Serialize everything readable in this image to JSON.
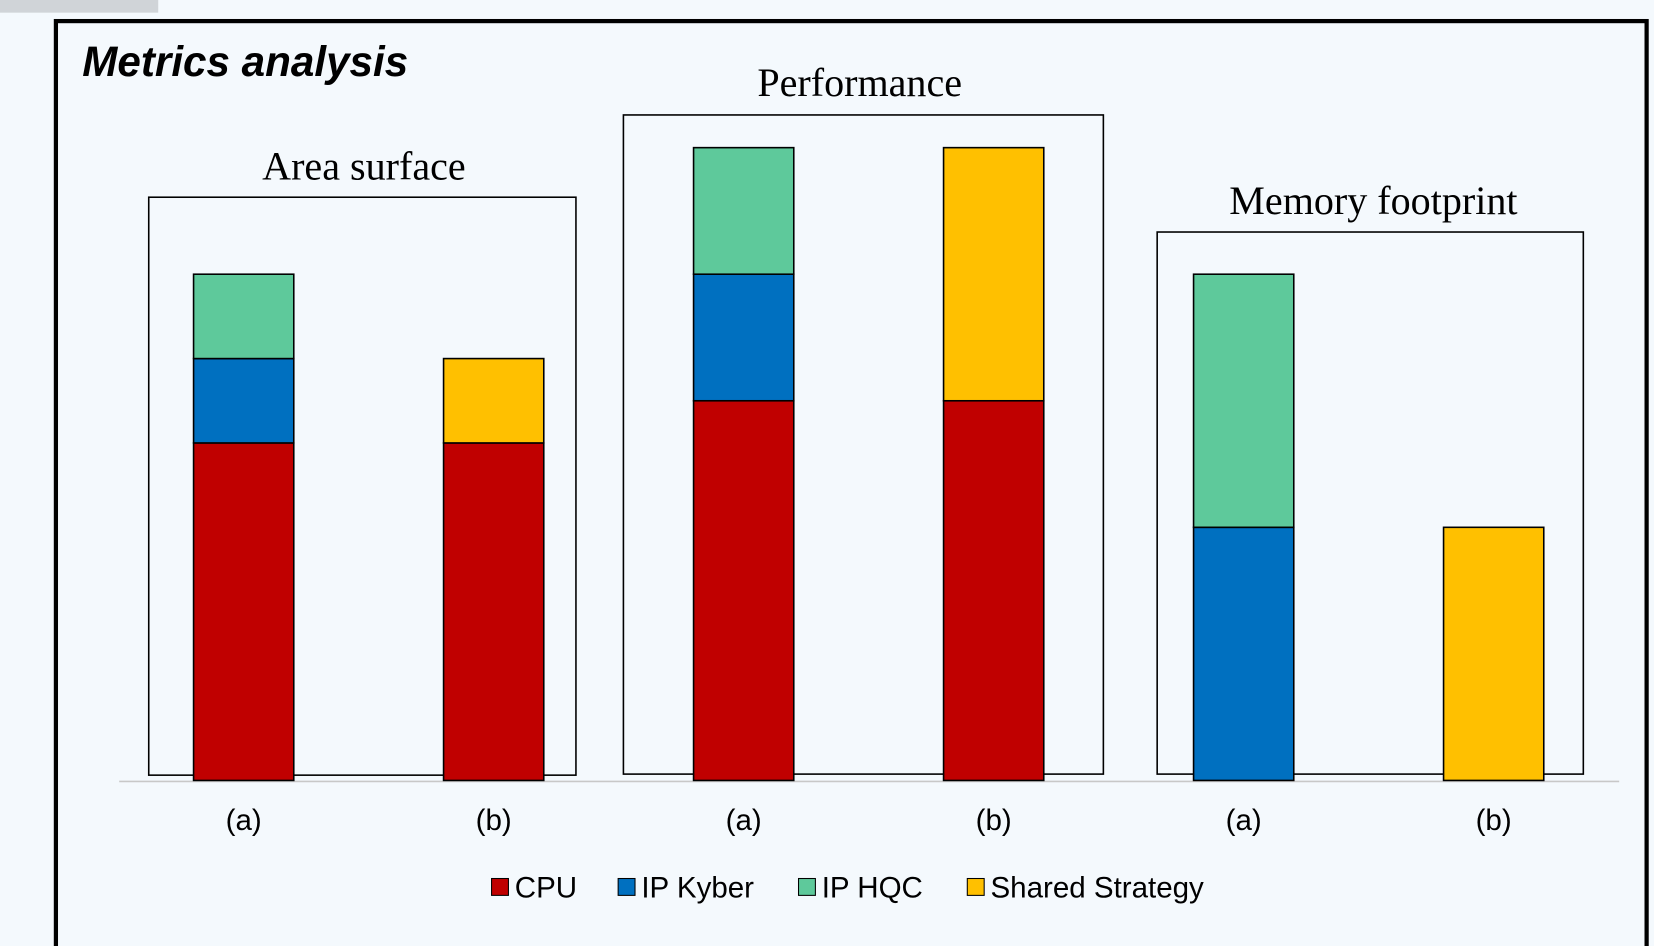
{
  "chart_data": {
    "type": "stacked_bar",
    "title": "Metrics analysis",
    "groups": [
      "Area surface",
      "Performance",
      "Memory footprint"
    ],
    "categories": [
      "(a)",
      "(b)",
      "(a)",
      "(b)",
      "(a)",
      "(b)"
    ],
    "series": [
      {
        "name": "CPU",
        "color": "#c00000",
        "values": [
          8,
          8,
          9,
          9,
          null,
          null
        ]
      },
      {
        "name": "IP Kyber",
        "color": "#0070c0",
        "values": [
          2,
          null,
          3,
          null,
          6,
          null
        ]
      },
      {
        "name": "IP HQC",
        "color": "#5ec99b",
        "values": [
          2,
          null,
          3,
          null,
          6,
          null
        ]
      },
      {
        "name": "Shared Strategy",
        "color": "#ffc000",
        "values": [
          null,
          2,
          null,
          6,
          null,
          6
        ]
      }
    ],
    "ylim": [
      0,
      15
    ],
    "legend": "bottom"
  }
}
